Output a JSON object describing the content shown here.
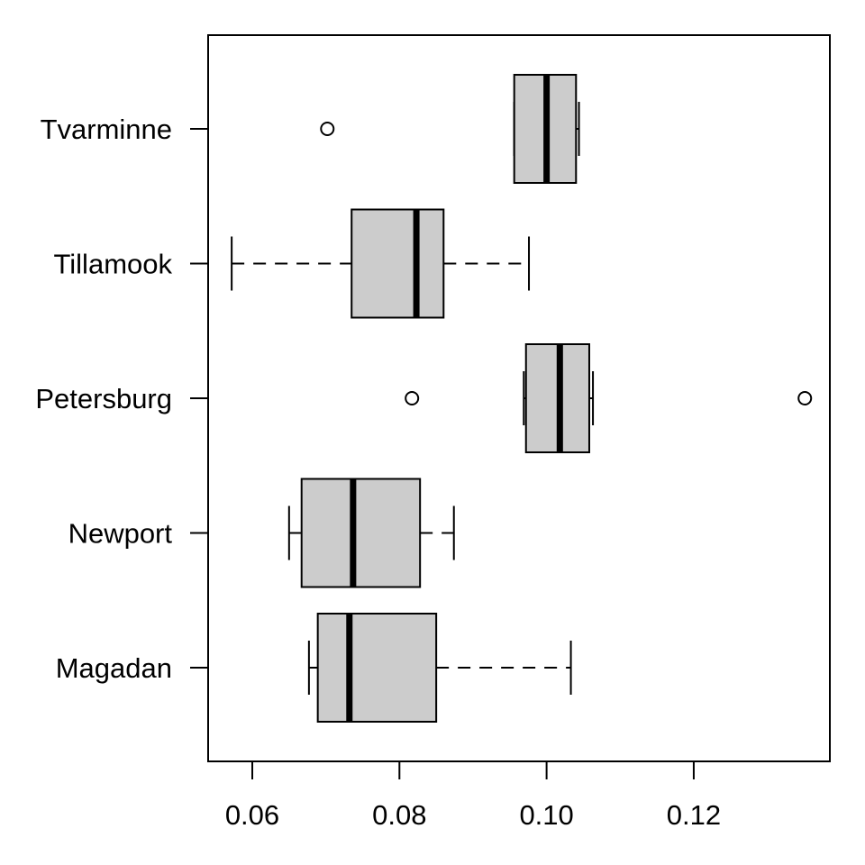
{
  "chart_data": {
    "type": "boxplot",
    "orientation": "horizontal",
    "title": "",
    "xlabel": "",
    "ylabel": "",
    "xlim": [
      0.054,
      0.1385
    ],
    "x_ticks": [
      0.06,
      0.08,
      0.1,
      0.12
    ],
    "x_tick_labels": [
      "0.06",
      "0.08",
      "0.10",
      "0.12"
    ],
    "grid": false,
    "box_fill": "#cccccc",
    "categories": [
      "Magadan",
      "Newport",
      "Petersburg",
      "Tillamook",
      "Tvarminne"
    ],
    "boxes": [
      {
        "name": "Magadan",
        "whisker_low": 0.0677,
        "q1": 0.0689,
        "median": 0.0732,
        "q3": 0.085,
        "whisker_high": 0.1033,
        "outliers": []
      },
      {
        "name": "Newport",
        "whisker_low": 0.065,
        "q1": 0.0667,
        "median": 0.0737,
        "q3": 0.0828,
        "whisker_high": 0.0874,
        "outliers": []
      },
      {
        "name": "Petersburg",
        "whisker_low": 0.0969,
        "q1": 0.0972,
        "median": 0.1018,
        "q3": 0.1058,
        "whisker_high": 0.1063,
        "outliers": [
          0.0817,
          0.1351
        ]
      },
      {
        "name": "Tillamook",
        "whisker_low": 0.0572,
        "q1": 0.0735,
        "median": 0.0823,
        "q3": 0.086,
        "whisker_high": 0.0976,
        "outliers": []
      },
      {
        "name": "Tvarminne",
        "whisker_low": 0.0956,
        "q1": 0.0956,
        "median": 0.1,
        "q3": 0.104,
        "whisker_high": 0.1044,
        "outliers": [
          0.0702
        ]
      }
    ]
  }
}
